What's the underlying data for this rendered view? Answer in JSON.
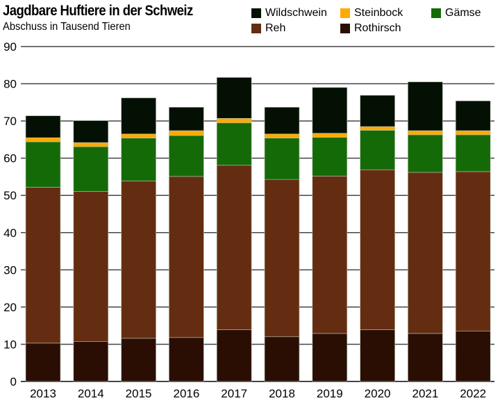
{
  "chart_data": {
    "type": "bar",
    "stacked": true,
    "title": "Jagdbare Huftiere in der Schweiz",
    "subtitle": "Abschuss in Tausend Tieren",
    "xlabel": "",
    "ylabel": "",
    "ylim": [
      0,
      90
    ],
    "yticks": [
      0,
      10,
      20,
      30,
      40,
      50,
      60,
      70,
      80,
      90
    ],
    "grid": true,
    "legend_position": "top-right",
    "categories": [
      "2013",
      "2014",
      "2015",
      "2016",
      "2017",
      "2018",
      "2019",
      "2020",
      "2021",
      "2022"
    ],
    "series": [
      {
        "name": "Rothirsch",
        "color": "#2a0e04",
        "values": [
          10.3,
          10.7,
          11.6,
          11.8,
          13.9,
          12.0,
          12.9,
          13.9,
          12.9,
          13.5
        ]
      },
      {
        "name": "Reh",
        "color": "#642d12",
        "values": [
          41.9,
          40.4,
          42.3,
          43.3,
          44.2,
          42.3,
          42.3,
          43.0,
          43.3,
          42.9
        ]
      },
      {
        "name": "Gämse",
        "color": "#156a08",
        "values": [
          12.2,
          12.0,
          11.5,
          11.0,
          11.4,
          11.1,
          10.4,
          10.6,
          10.1,
          9.9
        ]
      },
      {
        "name": "Steinbock",
        "color": "#ffaa00",
        "values": [
          1.1,
          1.1,
          1.1,
          1.3,
          1.2,
          1.1,
          1.1,
          1.0,
          1.1,
          1.1
        ]
      },
      {
        "name": "Wildschwein",
        "color": "#051005",
        "values": [
          5.9,
          5.9,
          9.7,
          6.3,
          11.0,
          7.2,
          12.3,
          8.4,
          13.1,
          8.0
        ]
      }
    ],
    "legend_order": [
      "Wildschwein",
      "Steinbock",
      "Gämse",
      "Reh",
      "Rothirsch"
    ]
  }
}
